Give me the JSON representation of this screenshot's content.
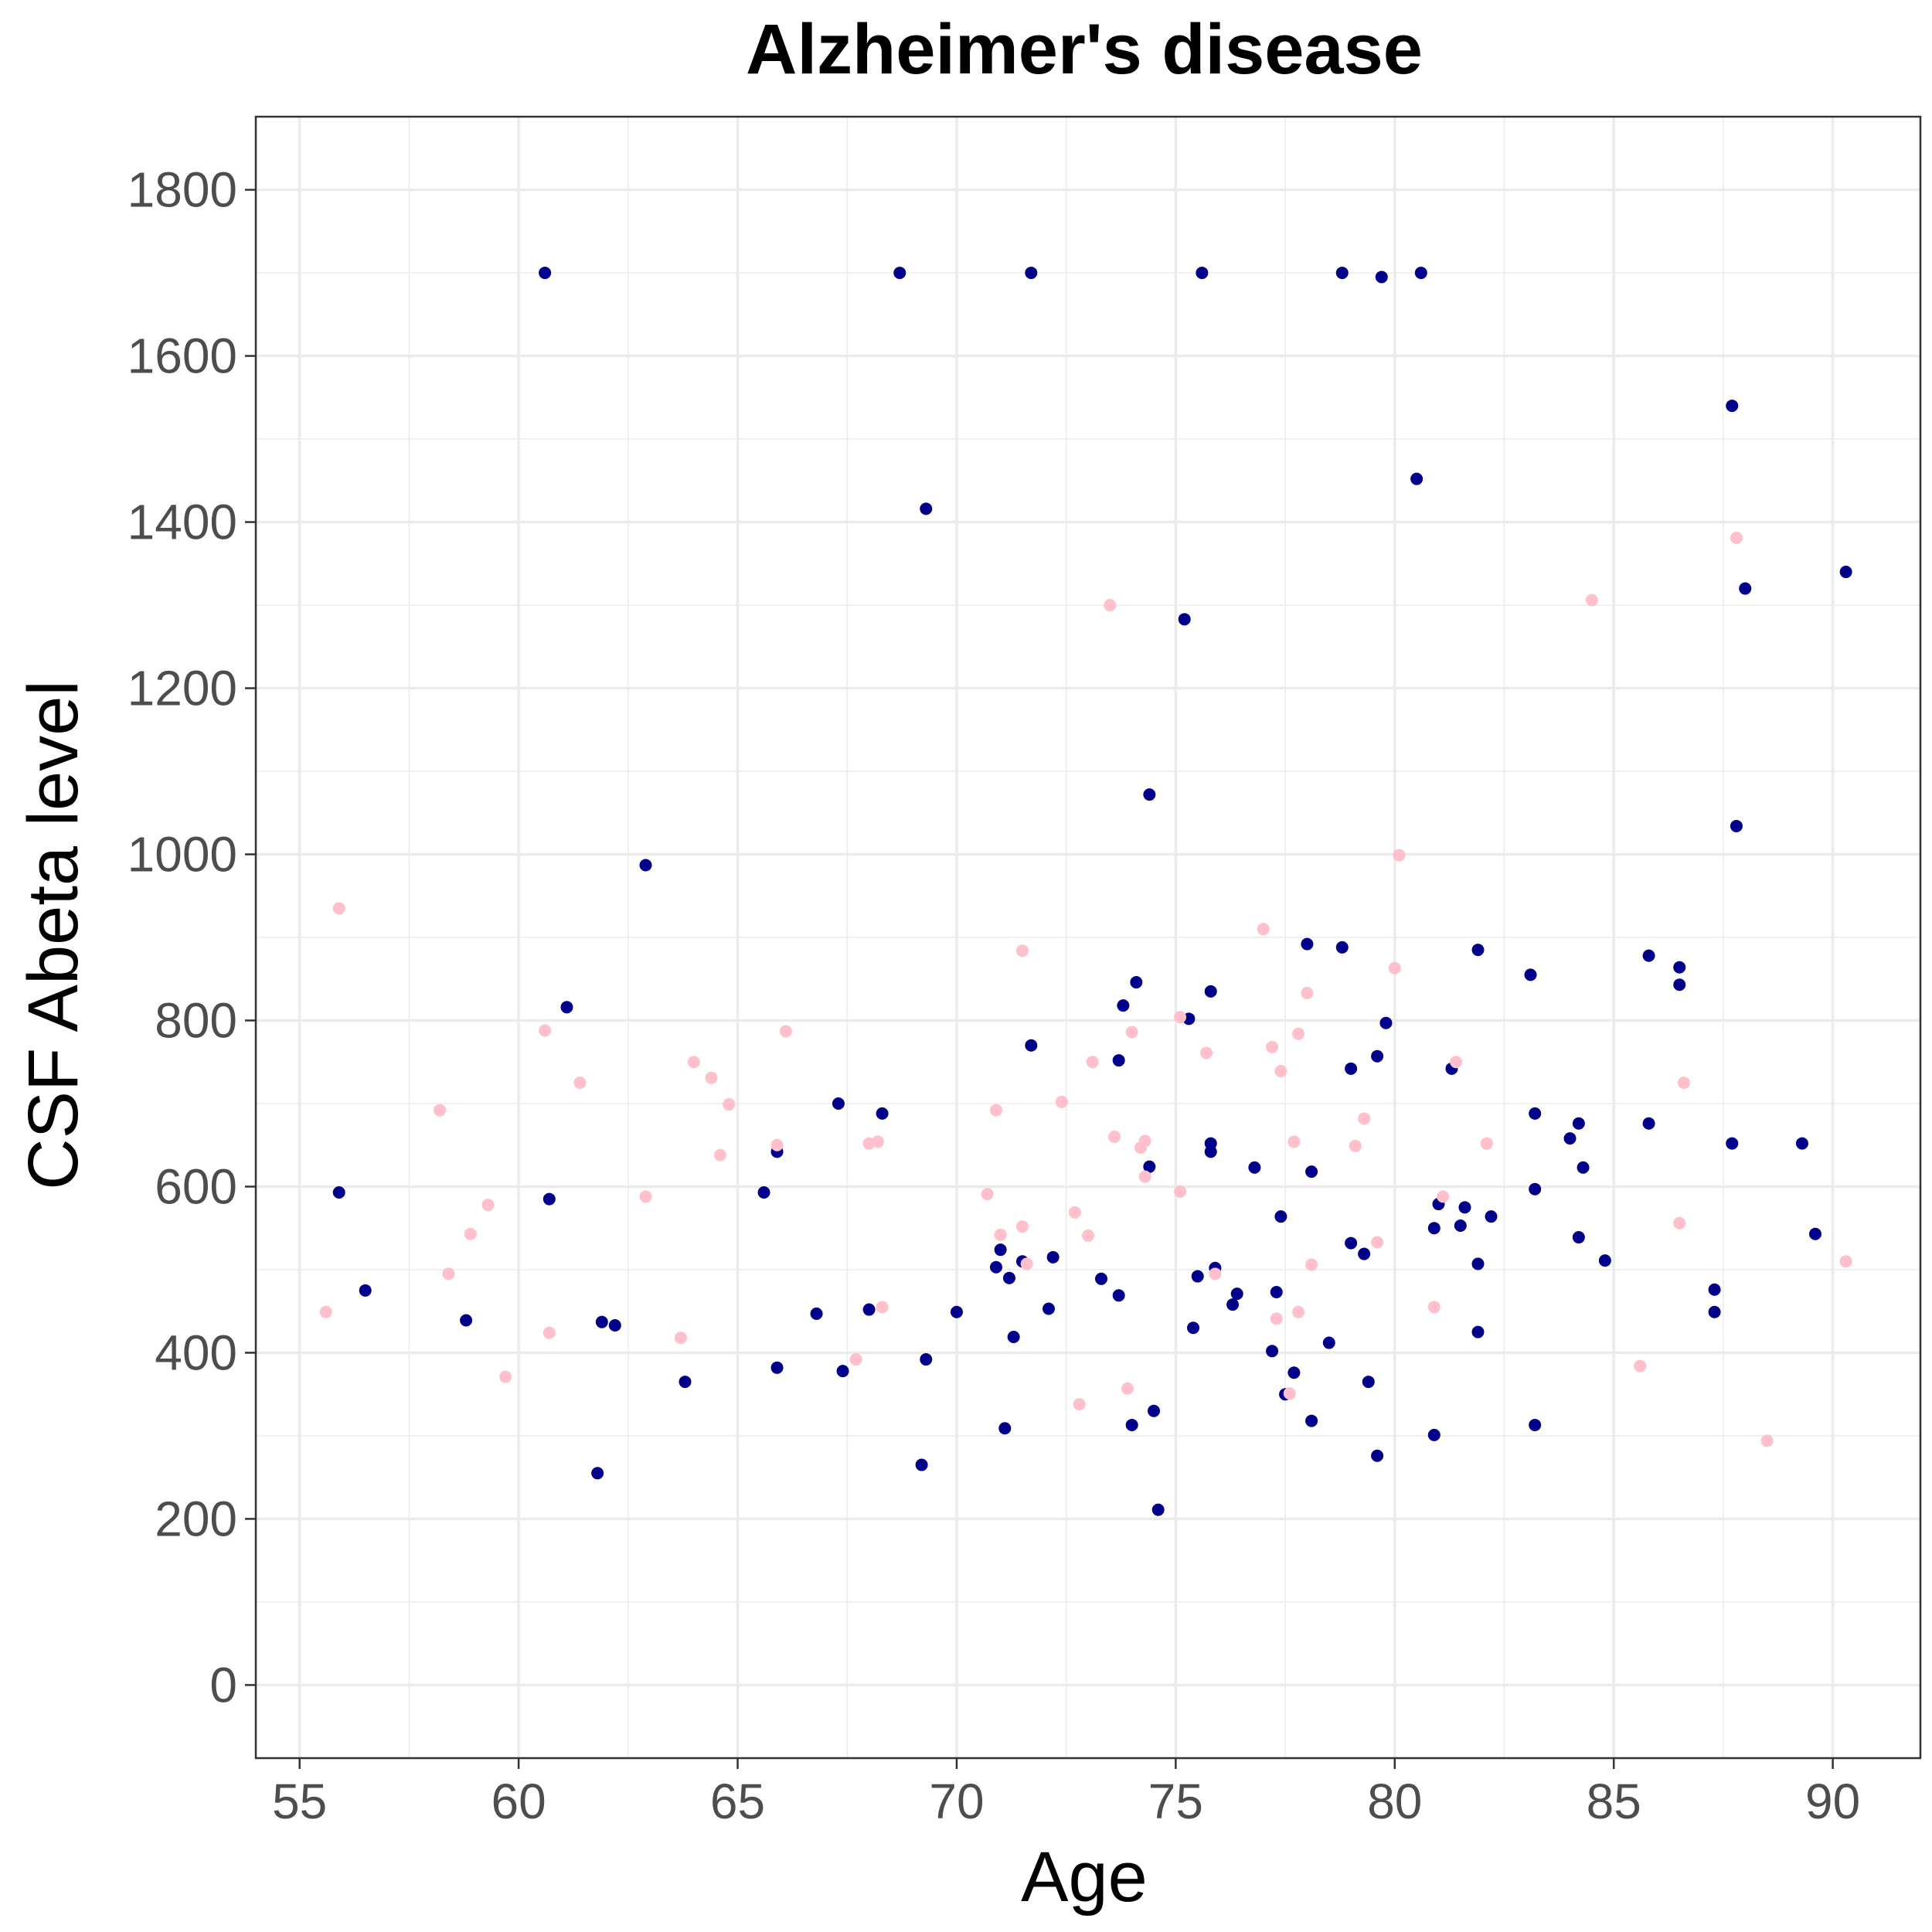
{
  "chart_data": {
    "type": "scatter",
    "title": "Alzheimer's disease",
    "xlabel": "Age",
    "ylabel": "CSF Abeta level",
    "xlim": [
      54.0,
      92.0
    ],
    "ylim": [
      -88,
      1888
    ],
    "x_ticks": [
      55,
      60,
      65,
      70,
      75,
      80,
      85,
      90
    ],
    "y_ticks": [
      0,
      200,
      400,
      600,
      800,
      1000,
      1200,
      1400,
      1600,
      1800
    ],
    "grid": true,
    "legend": "none",
    "colors": {
      "navy": "#00008b",
      "pink": "#ffc0cb",
      "grid": "#ebebeb",
      "panel_border": "#333333",
      "tick_text": "#4d4d4d"
    },
    "series": [
      {
        "color": "#00008b",
        "points": [
          [
            60.6,
            1700
          ],
          [
            68.7,
            1700
          ],
          [
            71.7,
            1700
          ],
          [
            75.6,
            1700
          ],
          [
            78.8,
            1700
          ],
          [
            79.7,
            1695
          ],
          [
            80.6,
            1700
          ],
          [
            87.7,
            1540
          ],
          [
            80.5,
            1452
          ],
          [
            69.3,
            1416
          ],
          [
            90.3,
            1340
          ],
          [
            88.0,
            1320
          ],
          [
            75.2,
            1283
          ],
          [
            74.4,
            1072
          ],
          [
            87.8,
            1034
          ],
          [
            62.9,
            987
          ],
          [
            78.0,
            892
          ],
          [
            78.8,
            888
          ],
          [
            81.9,
            885
          ],
          [
            85.8,
            878
          ],
          [
            86.5,
            864
          ],
          [
            83.1,
            855
          ],
          [
            86.5,
            843
          ],
          [
            74.1,
            846
          ],
          [
            75.8,
            835
          ],
          [
            61.1,
            816
          ],
          [
            73.8,
            818
          ],
          [
            75.3,
            802
          ],
          [
            79.8,
            797
          ],
          [
            71.7,
            770
          ],
          [
            79.6,
            757
          ],
          [
            73.7,
            752
          ],
          [
            79.0,
            742
          ],
          [
            81.3,
            742
          ],
          [
            67.3,
            700
          ],
          [
            68.3,
            688
          ],
          [
            83.2,
            688
          ],
          [
            85.8,
            676
          ],
          [
            84.2,
            676
          ],
          [
            84.0,
            658
          ],
          [
            75.8,
            652
          ],
          [
            87.7,
            652
          ],
          [
            89.3,
            652
          ],
          [
            65.9,
            642
          ],
          [
            75.8,
            642
          ],
          [
            74.4,
            624
          ],
          [
            76.8,
            623
          ],
          [
            84.3,
            623
          ],
          [
            78.1,
            618
          ],
          [
            55.9,
            593
          ],
          [
            65.6,
            593
          ],
          [
            83.2,
            597
          ],
          [
            60.7,
            585
          ],
          [
            81.0,
            579
          ],
          [
            81.6,
            575
          ],
          [
            77.4,
            564
          ],
          [
            82.2,
            564
          ],
          [
            81.5,
            553
          ],
          [
            80.9,
            550
          ],
          [
            89.6,
            543
          ],
          [
            84.2,
            539
          ],
          [
            79.0,
            532
          ],
          [
            71.0,
            524
          ],
          [
            79.3,
            519
          ],
          [
            72.2,
            515
          ],
          [
            71.5,
            510
          ],
          [
            84.8,
            511
          ],
          [
            81.9,
            507
          ],
          [
            70.9,
            503
          ],
          [
            75.9,
            502
          ],
          [
            75.5,
            492
          ],
          [
            71.2,
            490
          ],
          [
            73.3,
            489
          ],
          [
            87.3,
            476
          ],
          [
            56.5,
            475
          ],
          [
            77.3,
            473
          ],
          [
            76.4,
            471
          ],
          [
            73.7,
            469
          ],
          [
            76.3,
            458
          ],
          [
            72.1,
            453
          ],
          [
            68.0,
            452
          ],
          [
            70.0,
            449
          ],
          [
            66.8,
            447
          ],
          [
            87.3,
            449
          ],
          [
            58.8,
            439
          ],
          [
            61.9,
            437
          ],
          [
            62.2,
            433
          ],
          [
            75.4,
            430
          ],
          [
            81.9,
            425
          ],
          [
            71.3,
            419
          ],
          [
            78.5,
            412
          ],
          [
            77.2,
            402
          ],
          [
            69.3,
            392
          ],
          [
            65.9,
            382
          ],
          [
            67.4,
            378
          ],
          [
            77.7,
            376
          ],
          [
            63.8,
            365
          ],
          [
            79.4,
            365
          ],
          [
            77.5,
            350
          ],
          [
            74.5,
            330
          ],
          [
            78.1,
            318
          ],
          [
            74.0,
            313
          ],
          [
            83.2,
            313
          ],
          [
            71.1,
            309
          ],
          [
            80.9,
            301
          ],
          [
            79.6,
            276
          ],
          [
            69.2,
            265
          ],
          [
            61.8,
            255
          ],
          [
            74.6,
            211
          ]
        ]
      },
      {
        "color": "#ffc0cb",
        "points": [
          [
            87.8,
            1381
          ],
          [
            84.5,
            1306
          ],
          [
            73.5,
            1300
          ],
          [
            80.1,
            999
          ],
          [
            55.9,
            935
          ],
          [
            77.0,
            910
          ],
          [
            71.5,
            884
          ],
          [
            80.0,
            863
          ],
          [
            78.0,
            833
          ],
          [
            66.1,
            787
          ],
          [
            60.6,
            788
          ],
          [
            74.0,
            786
          ],
          [
            77.8,
            784
          ],
          [
            75.1,
            804
          ],
          [
            77.2,
            768
          ],
          [
            75.7,
            761
          ],
          [
            64.0,
            750
          ],
          [
            73.1,
            750
          ],
          [
            81.4,
            750
          ],
          [
            77.4,
            739
          ],
          [
            64.4,
            731
          ],
          [
            61.4,
            725
          ],
          [
            86.6,
            725
          ],
          [
            72.4,
            702
          ],
          [
            64.8,
            699
          ],
          [
            58.2,
            692
          ],
          [
            70.9,
            692
          ],
          [
            79.3,
            682
          ],
          [
            73.6,
            660
          ],
          [
            74.3,
            655
          ],
          [
            77.7,
            654
          ],
          [
            68.0,
            652
          ],
          [
            68.2,
            654
          ],
          [
            82.1,
            652
          ],
          [
            65.9,
            650
          ],
          [
            79.1,
            649
          ],
          [
            74.2,
            647
          ],
          [
            64.6,
            638
          ],
          [
            74.3,
            612
          ],
          [
            75.1,
            594
          ],
          [
            70.7,
            591
          ],
          [
            62.9,
            588
          ],
          [
            59.3,
            578
          ],
          [
            72.7,
            569
          ],
          [
            86.5,
            556
          ],
          [
            71.5,
            552
          ],
          [
            58.9,
            543
          ],
          [
            71.0,
            542
          ],
          [
            73.0,
            541
          ],
          [
            79.6,
            533
          ],
          [
            90.3,
            510
          ],
          [
            71.6,
            507
          ],
          [
            78.1,
            506
          ],
          [
            58.4,
            495
          ],
          [
            75.9,
            495
          ],
          [
            80.9,
            455
          ],
          [
            68.3,
            455
          ],
          [
            55.6,
            449
          ],
          [
            77.8,
            449
          ],
          [
            77.3,
            441
          ],
          [
            60.7,
            424
          ],
          [
            63.7,
            418
          ],
          [
            67.7,
            392
          ],
          [
            85.6,
            384
          ],
          [
            59.7,
            371
          ],
          [
            73.9,
            357
          ],
          [
            77.6,
            351
          ],
          [
            72.8,
            338
          ],
          [
            88.5,
            294
          ],
          [
            81.1,
            588
          ]
        ]
      }
    ]
  }
}
